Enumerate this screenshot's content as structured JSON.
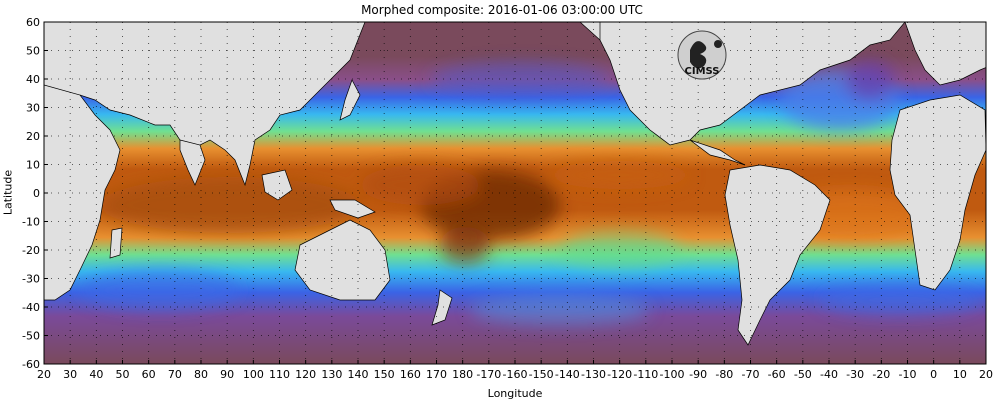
{
  "title": "Morphed composite: 2016-01-06 03:00:00 UTC",
  "ylabel": "Latitude",
  "xlabel": "Longitude",
  "logo_text": "CIMSS",
  "latitude_ticks": [
    "60",
    "50",
    "40",
    "30",
    "20",
    "10",
    "0",
    "-10",
    "-20",
    "-30",
    "-40",
    "-50",
    "-60"
  ],
  "longitude_ticks": [
    "20",
    "30",
    "40",
    "50",
    "60",
    "70",
    "80",
    "90",
    "100",
    "110",
    "120",
    "130",
    "140",
    "150",
    "160",
    "170",
    "180",
    "-170",
    "-160",
    "-150",
    "-140",
    "-130",
    "-120",
    "-110",
    "-100",
    "-90",
    "-80",
    "-70",
    "-60",
    "-50",
    "-40",
    "-30",
    "-20",
    "-10",
    "0",
    "10",
    "20"
  ],
  "colors": {
    "land": "#e0e0e0",
    "dry": "#7a4a5c",
    "dry_mid": "#8a5570",
    "moist_purple": "#5a3aa0",
    "blue": "#3070f0",
    "cyan": "#30c8f0",
    "green": "#78e890",
    "yellow": "#f0e060",
    "orange": "#e07820",
    "deep_orange": "#b84808",
    "very_wet": "#6a2808"
  }
}
